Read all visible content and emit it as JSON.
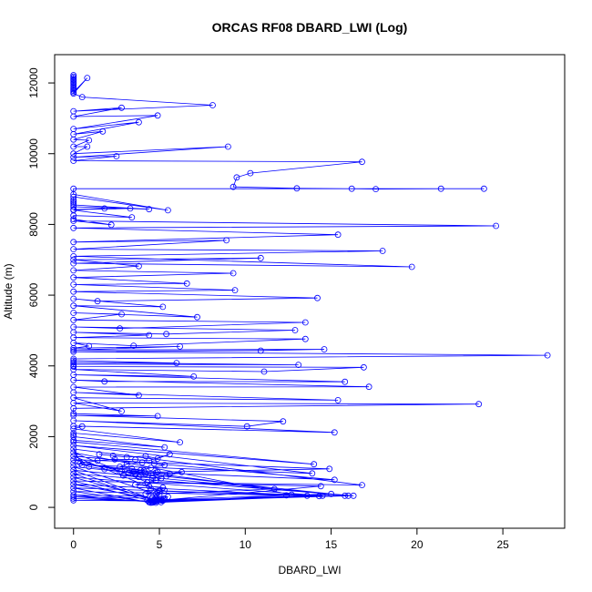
{
  "chart_data": {
    "type": "line",
    "title": "ORCAS RF08 DBARD_LWI (Log)",
    "xlabel": "DBARD_LWI",
    "ylabel": "Altitude (m)",
    "xlim": [
      -1.1,
      28.6
    ],
    "ylim": [
      -590,
      12800
    ],
    "xticks": [
      0,
      5,
      10,
      15,
      20,
      25
    ],
    "yticks": [
      0,
      2000,
      4000,
      6000,
      8000,
      10000,
      12000
    ],
    "grid": false,
    "markers": "open-circle",
    "color": "#0000ff",
    "series": [
      {
        "points": [
          [
            0,
            12220
          ],
          [
            0,
            12180
          ],
          [
            0,
            12140
          ],
          [
            0,
            12100
          ],
          [
            0,
            12060
          ],
          [
            0,
            12020
          ],
          [
            0,
            11980
          ],
          [
            0,
            11940
          ],
          [
            0,
            11900
          ],
          [
            0,
            11860
          ],
          [
            0,
            11820
          ],
          [
            0,
            11780
          ],
          [
            0,
            11740
          ],
          [
            0.8,
            12140
          ],
          [
            0,
            11700
          ],
          [
            0.5,
            11600
          ],
          [
            8.1,
            11370
          ],
          [
            0,
            11200
          ],
          [
            2.8,
            11300
          ],
          [
            0,
            11050
          ],
          [
            4.9,
            11080
          ],
          [
            0,
            10700
          ],
          [
            3.8,
            10890
          ],
          [
            0,
            10550
          ],
          [
            1.7,
            10630
          ],
          [
            0,
            10400
          ],
          [
            0.9,
            10380
          ],
          [
            0,
            10200
          ],
          [
            0.8,
            10200
          ],
          [
            0,
            10000
          ],
          [
            9,
            10200
          ],
          [
            0,
            9900
          ],
          [
            2.5,
            9930
          ],
          [
            0,
            9800
          ],
          [
            16.8,
            9770
          ],
          [
            10.3,
            9450
          ],
          [
            9.5,
            9330
          ],
          [
            9.3,
            9060
          ],
          [
            13,
            9020
          ],
          [
            16.2,
            9010
          ],
          [
            17.6,
            9000
          ],
          [
            21.4,
            9010
          ],
          [
            23.9,
            9010
          ],
          [
            0,
            9010
          ],
          [
            0,
            8850
          ],
          [
            5.5,
            8400
          ],
          [
            0,
            8780
          ],
          [
            0,
            8700
          ],
          [
            0,
            8650
          ],
          [
            0,
            8600
          ],
          [
            0,
            8550
          ],
          [
            4.4,
            8430
          ],
          [
            0,
            8500
          ],
          [
            3.3,
            8450
          ],
          [
            0,
            8420
          ],
          [
            1.8,
            8450
          ],
          [
            0,
            8400
          ],
          [
            3.4,
            8200
          ],
          [
            0,
            8250
          ],
          [
            0,
            8150
          ],
          [
            2.2,
            7990
          ],
          [
            0,
            8100
          ],
          [
            24.6,
            7960
          ],
          [
            0,
            7900
          ],
          [
            15.4,
            7710
          ],
          [
            0,
            7500
          ],
          [
            8.9,
            7550
          ],
          [
            0,
            7300
          ],
          [
            18,
            7250
          ],
          [
            0,
            7100
          ],
          [
            19.7,
            6800
          ],
          [
            0,
            6900
          ],
          [
            10.9,
            7050
          ],
          [
            0,
            7000
          ],
          [
            3.8,
            6820
          ],
          [
            0,
            6700
          ],
          [
            9.3,
            6620
          ],
          [
            0,
            6500
          ],
          [
            6.6,
            6330
          ],
          [
            0,
            6300
          ],
          [
            9.4,
            6140
          ],
          [
            0,
            6100
          ],
          [
            14.2,
            5920
          ],
          [
            1.4,
            5830
          ],
          [
            0,
            5900
          ],
          [
            5.2,
            5670
          ],
          [
            0,
            5700
          ],
          [
            7.2,
            5380
          ],
          [
            0,
            5500
          ],
          [
            2.8,
            5460
          ],
          [
            0,
            5300
          ],
          [
            13.5,
            5230
          ],
          [
            2.7,
            5060
          ],
          [
            0,
            5100
          ],
          [
            12.9,
            5010
          ],
          [
            5.4,
            4900
          ],
          [
            0,
            4950
          ],
          [
            4.4,
            4870
          ],
          [
            0,
            4800
          ],
          [
            13.5,
            4760
          ],
          [
            3.5,
            4570
          ],
          [
            0,
            4650
          ],
          [
            0.9,
            4560
          ],
          [
            0,
            4500
          ],
          [
            6.2,
            4550
          ],
          [
            0,
            4450
          ],
          [
            14.6,
            4470
          ],
          [
            10.9,
            4430
          ],
          [
            0,
            4400
          ],
          [
            27.6,
            4300
          ],
          [
            0,
            4200
          ],
          [
            0,
            4150
          ],
          [
            6,
            4080
          ],
          [
            0,
            4100
          ],
          [
            13.1,
            4030
          ],
          [
            0,
            4050
          ],
          [
            0,
            4000
          ],
          [
            0,
            3980
          ],
          [
            16.9,
            3960
          ],
          [
            11.1,
            3840
          ],
          [
            0,
            3900
          ],
          [
            7,
            3700
          ],
          [
            0,
            3750
          ],
          [
            15.8,
            3550
          ],
          [
            1.8,
            3560
          ],
          [
            0,
            3600
          ],
          [
            17.2,
            3410
          ],
          [
            0,
            3400
          ],
          [
            3.8,
            3170
          ],
          [
            0,
            3250
          ],
          [
            15.4,
            3030
          ],
          [
            0,
            3100
          ],
          [
            2.8,
            2720
          ],
          [
            0,
            2950
          ],
          [
            23.6,
            2920
          ],
          [
            0,
            2800
          ],
          [
            0,
            2650
          ],
          [
            4.9,
            2580
          ],
          [
            0,
            2600
          ],
          [
            12.2,
            2430
          ],
          [
            10.1,
            2290
          ],
          [
            0,
            2450
          ],
          [
            15.2,
            2120
          ],
          [
            0,
            2300
          ],
          [
            0.5,
            2290
          ],
          [
            0,
            2220
          ],
          [
            6.2,
            1840
          ],
          [
            0,
            2100
          ],
          [
            0,
            2050
          ],
          [
            0,
            2000
          ],
          [
            5.3,
            1700
          ],
          [
            0,
            1900
          ],
          [
            0,
            1850
          ],
          [
            14,
            1220
          ],
          [
            0,
            1750
          ],
          [
            13.9,
            960
          ],
          [
            0.5,
            1200
          ],
          [
            0,
            1650
          ],
          [
            16.8,
            630
          ],
          [
            4.3,
            710
          ],
          [
            0,
            1550
          ],
          [
            12.7,
            360
          ],
          [
            15.8,
            330
          ],
          [
            5,
            460
          ],
          [
            0,
            1450
          ],
          [
            15.2,
            780
          ],
          [
            2.8,
            1020
          ],
          [
            0,
            1350
          ],
          [
            14.9,
            1090
          ],
          [
            4.9,
            1000
          ],
          [
            0,
            1250
          ],
          [
            11.7,
            520
          ],
          [
            4.8,
            380
          ],
          [
            0,
            1150
          ],
          [
            15,
            380
          ],
          [
            4.7,
            210
          ],
          [
            0,
            1050
          ],
          [
            16,
            330
          ],
          [
            4.8,
            170
          ],
          [
            0,
            950
          ],
          [
            16.3,
            330
          ],
          [
            4.9,
            200
          ],
          [
            0,
            850
          ],
          [
            14.5,
            330
          ],
          [
            4.5,
            180
          ],
          [
            0,
            750
          ],
          [
            14.4,
            600
          ],
          [
            5.1,
            200
          ],
          [
            0,
            650
          ],
          [
            14.3,
            320
          ],
          [
            4.5,
            130
          ],
          [
            0,
            550
          ],
          [
            13.6,
            330
          ],
          [
            4.4,
            150
          ],
          [
            0,
            450
          ],
          [
            12.4,
            340
          ],
          [
            4.8,
            130
          ],
          [
            0,
            350
          ],
          [
            5.5,
            300
          ],
          [
            4.6,
            150
          ],
          [
            0,
            300
          ],
          [
            5.3,
            250
          ],
          [
            4.7,
            160
          ],
          [
            0,
            250
          ],
          [
            4.6,
            180
          ],
          [
            0,
            200
          ],
          [
            4.7,
            180
          ]
        ]
      },
      {
        "points": [
          [
            1.5,
            1500
          ],
          [
            2.3,
            1460
          ],
          [
            3.1,
            1420
          ],
          [
            4.2,
            1450
          ],
          [
            4.9,
            1380
          ],
          [
            5.6,
            1500
          ],
          [
            4.4,
            1320
          ],
          [
            3.6,
            1350
          ],
          [
            2.4,
            1360
          ],
          [
            1.4,
            1320
          ],
          [
            0.4,
            1250
          ],
          [
            0.9,
            1150
          ],
          [
            1.8,
            1080
          ],
          [
            2.7,
            1020
          ],
          [
            3.5,
            1000
          ],
          [
            4.2,
            950
          ],
          [
            4.8,
            980
          ],
          [
            5.6,
            950
          ],
          [
            6.3,
            1000
          ],
          [
            5.4,
            880
          ],
          [
            4.6,
            830
          ],
          [
            3.8,
            860
          ],
          [
            2.9,
            900
          ],
          [
            3.6,
            950
          ],
          [
            4.1,
            1040
          ],
          [
            3.4,
            1100
          ],
          [
            2.7,
            1150
          ],
          [
            3.1,
            1220
          ],
          [
            4,
            1270
          ],
          [
            4.7,
            1240
          ],
          [
            5.3,
            1200
          ],
          [
            4.5,
            1120
          ],
          [
            3.9,
            1050
          ],
          [
            3.2,
            970
          ],
          [
            3.9,
            920
          ],
          [
            4.6,
            890
          ],
          [
            5.1,
            820
          ],
          [
            4.8,
            760
          ],
          [
            4.3,
            700
          ],
          [
            3.6,
            640
          ],
          [
            4.4,
            600
          ],
          [
            5.2,
            560
          ],
          [
            4.5,
            520
          ],
          [
            5.3,
            480
          ],
          [
            4.9,
            420
          ],
          [
            4.2,
            380
          ],
          [
            5,
            340
          ],
          [
            4.6,
            280
          ],
          [
            5.1,
            240
          ],
          [
            4.3,
            200
          ],
          [
            4.8,
            170
          ],
          [
            5.2,
            190
          ],
          [
            4.4,
            160
          ],
          [
            4.6,
            140
          ],
          [
            4.9,
            210
          ],
          [
            5.1,
            150
          ]
        ]
      }
    ]
  }
}
